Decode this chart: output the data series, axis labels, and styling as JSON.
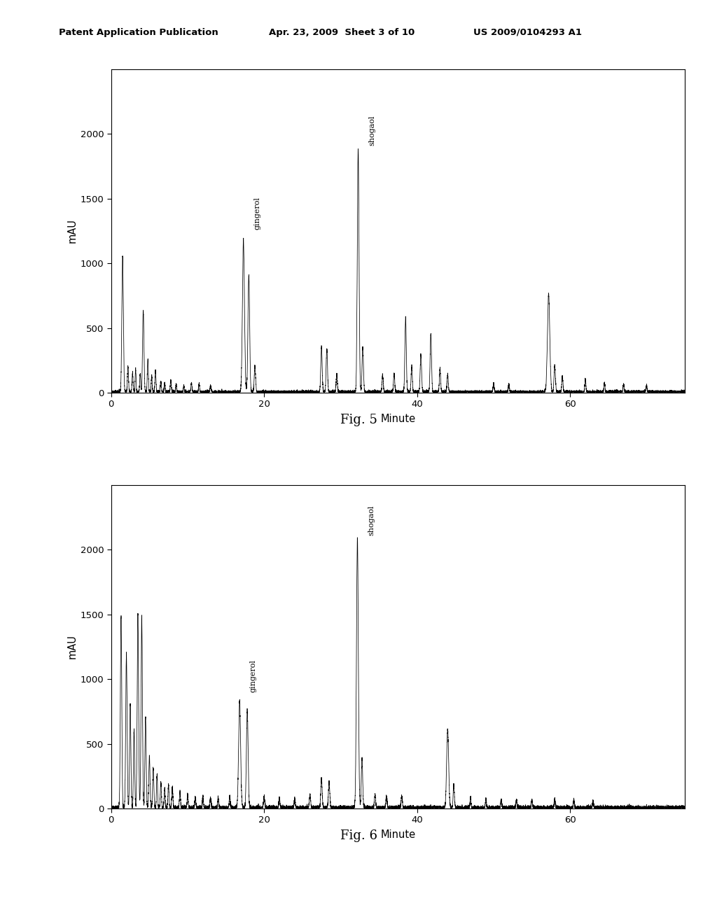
{
  "header_left": "Patent Application Publication",
  "header_mid": "Apr. 23, 2009  Sheet 3 of 10",
  "header_right": "US 2009/0104293 A1",
  "fig5_title": "Fig. 5",
  "fig6_title": "Fig. 6",
  "ylabel": "mAU",
  "xlabel": "Minute",
  "ylim": [
    0,
    2500
  ],
  "xlim": [
    0,
    75
  ],
  "yticks": [
    0,
    500,
    1000,
    1500,
    2000
  ],
  "xticks": [
    0,
    20,
    40,
    60
  ],
  "background_color": "#ffffff",
  "line_color": "#000000"
}
